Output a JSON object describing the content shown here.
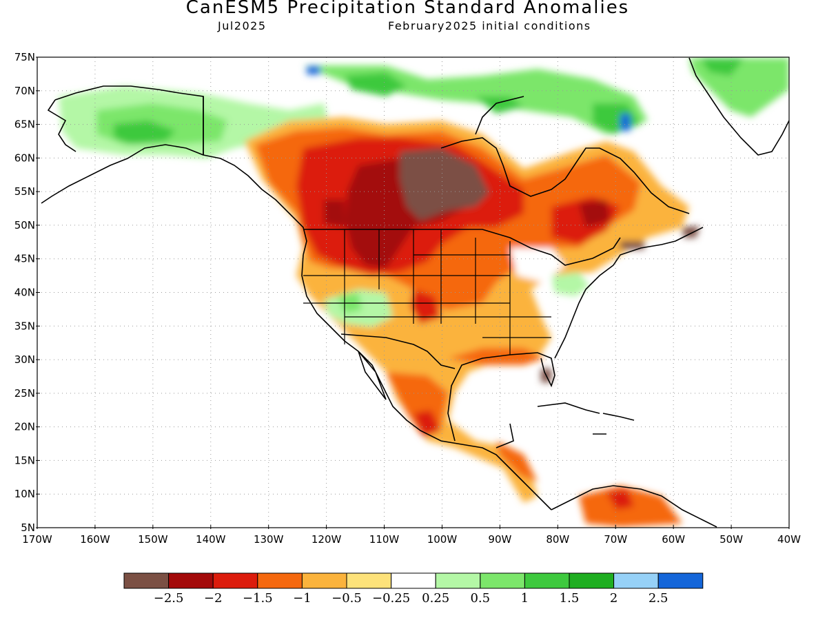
{
  "title": "CanESM5 Precipitation Standard Anomalies",
  "subtitle_left": "Jul2025",
  "subtitle_right": "February2025 initial conditions",
  "map": {
    "lon_range": [
      -170,
      -40
    ],
    "lat_range": [
      5,
      75
    ],
    "lat_labels": [
      "75N",
      "70N",
      "65N",
      "60N",
      "55N",
      "50N",
      "45N",
      "40N",
      "35N",
      "30N",
      "25N",
      "20N",
      "15N",
      "10N",
      "5N"
    ],
    "lon_labels": [
      "170W",
      "160W",
      "150W",
      "140W",
      "130W",
      "120W",
      "110W",
      "100W",
      "90W",
      "80W",
      "70W",
      "60W",
      "50W",
      "40W"
    ],
    "grid": "dotted",
    "colors": {
      "very_dry": "#7b5044",
      "dry_2": "#a30a0a",
      "dry_15": "#dc1c0c",
      "dry_1": "#f5680e",
      "dry_05": "#fbb33c",
      "dry_025": "#fde27a",
      "neutral": "#ffffff",
      "wet_025": "#b4f7a6",
      "wet_05": "#7ce66b",
      "wet_1": "#3ec93e",
      "wet_15": "#1fae21",
      "wet_2": "#96d1f7",
      "wet_25": "#1466d9"
    }
  },
  "legend": {
    "colors": [
      "#7b5044",
      "#a30a0a",
      "#dc1c0c",
      "#f5680e",
      "#fbb33c",
      "#fde27a",
      "#ffffff",
      "#b4f7a6",
      "#7ce66b",
      "#3ec93e",
      "#1fae21",
      "#96d1f7",
      "#1466d9"
    ],
    "labels": [
      "−2.5",
      "−2",
      "−1.5",
      "−1",
      "−0.5",
      "−0.25",
      "0.25",
      "0.5",
      "1",
      "1.5",
      "2",
      "2.5"
    ]
  }
}
